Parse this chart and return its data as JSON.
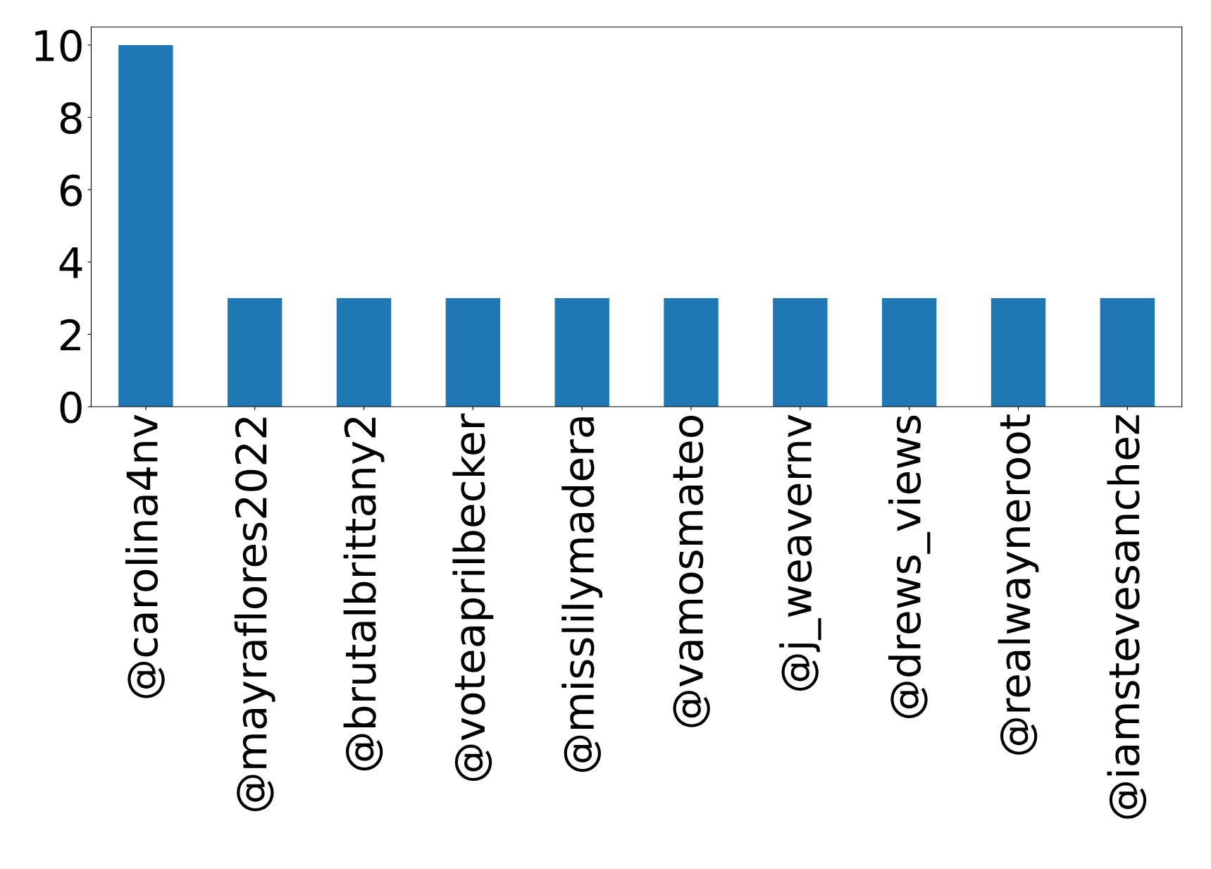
{
  "chart_data": {
    "type": "bar",
    "categories": [
      "@carolina4nv",
      "@mayraflores2022",
      "@brutalbrittany2",
      "@voteaprilbecker",
      "@misslilymadera",
      "@vamosmateo",
      "@j_weavernv",
      "@drews_views",
      "@realwayneroot",
      "@iamstevesanchez"
    ],
    "values": [
      10,
      3,
      3,
      3,
      3,
      3,
      3,
      3,
      3,
      3
    ],
    "color": "#1f77b4",
    "ylim": [
      0,
      10.5
    ],
    "yticks": [
      0,
      2,
      4,
      6,
      8,
      10
    ],
    "grid": false,
    "legend": false
  }
}
